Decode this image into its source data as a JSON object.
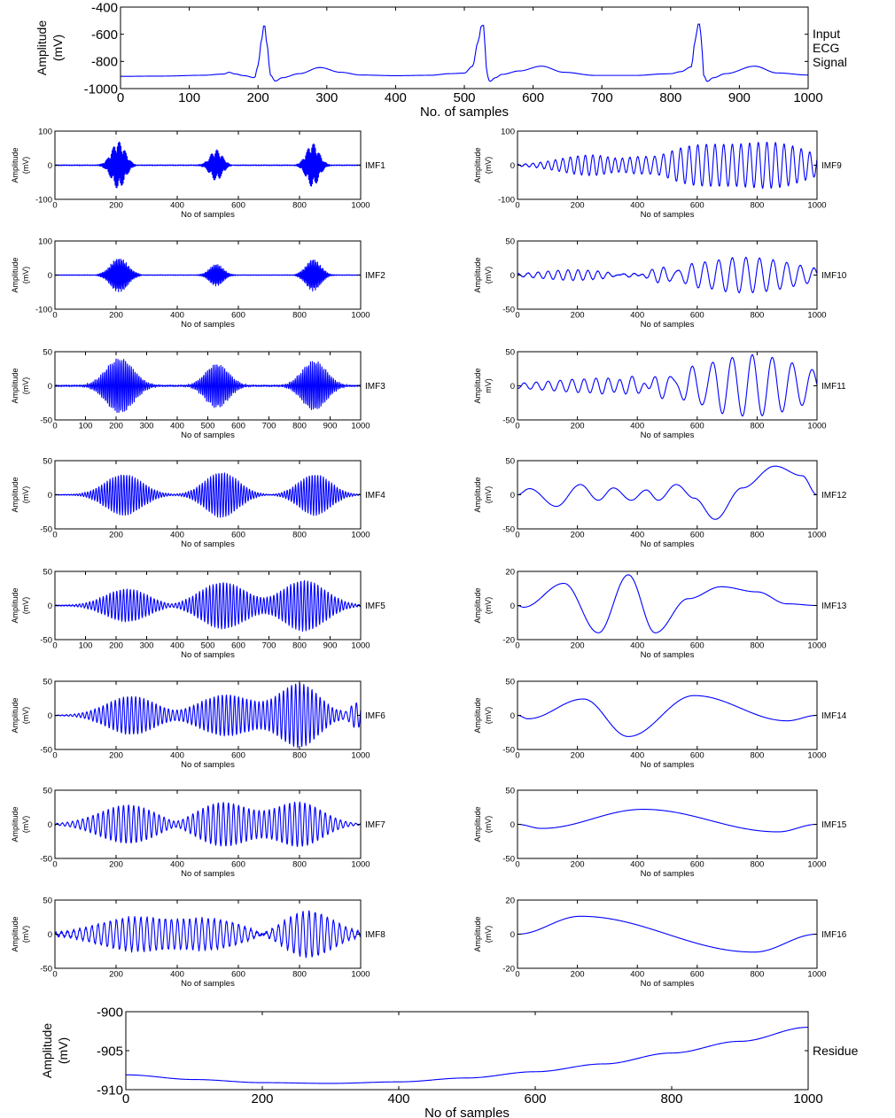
{
  "figure": {
    "trace_color": "#0000ff",
    "axis_color": "#000000"
  },
  "chart_data": [
    {
      "id": "ecg",
      "type": "line",
      "ylabel": "Amplitude",
      "ylabel_sub": "(mV)",
      "xlabel": "No. of samples",
      "side_label": [
        "Input",
        "ECG",
        "Signal"
      ],
      "xlim": [
        0,
        1000
      ],
      "ylim": [
        -1000,
        -400
      ],
      "xticks": [
        0,
        100,
        200,
        300,
        400,
        500,
        600,
        700,
        800,
        900,
        1000
      ],
      "yticks": [
        -1000,
        -800,
        -600,
        -400
      ],
      "series": [
        {
          "x": [
            0,
            60,
            120,
            150,
            158,
            166,
            180,
            195,
            200,
            205,
            208,
            210,
            213,
            218,
            225,
            235,
            260,
            290,
            320,
            350,
            400,
            450,
            480,
            500,
            512,
            520,
            525,
            528,
            530,
            533,
            537,
            545,
            555,
            580,
            612,
            645,
            690,
            750,
            790,
            800,
            815,
            830,
            836,
            840,
            843,
            845,
            848,
            853,
            862,
            880,
            922,
            955,
            1000
          ],
          "y": [
            -910,
            -908,
            -902,
            -893,
            -880,
            -892,
            -905,
            -920,
            -830,
            -650,
            -540,
            -540,
            -680,
            -900,
            -945,
            -920,
            -890,
            -845,
            -880,
            -900,
            -905,
            -902,
            -890,
            -886,
            -835,
            -655,
            -535,
            -535,
            -680,
            -900,
            -948,
            -920,
            -895,
            -870,
            -835,
            -880,
            -903,
            -903,
            -892,
            -890,
            -875,
            -840,
            -640,
            -525,
            -525,
            -680,
            -900,
            -948,
            -920,
            -890,
            -835,
            -885,
            -900
          ]
        }
      ]
    },
    {
      "id": "imf1",
      "type": "line",
      "ylabel": "Amplitude",
      "ylabel_sub": "(mV)",
      "xlabel": "No of samples",
      "side_label": [
        "IMF1"
      ],
      "xlim": [
        0,
        1000
      ],
      "ylim": [
        -100,
        100
      ],
      "xticks": [
        0,
        200,
        400,
        600,
        800,
        1000
      ],
      "yticks": [
        -100,
        0,
        100
      ],
      "bursts": [
        [
          207,
          22,
          70,
          0.35
        ],
        [
          527,
          20,
          45,
          0.35
        ],
        [
          843,
          20,
          65,
          0.35
        ]
      ],
      "noise": 1.5
    },
    {
      "id": "imf2",
      "type": "line",
      "ylabel": "Amplitude",
      "ylabel_sub": "(mV)",
      "xlabel": "No of samples",
      "side_label": [
        "IMF2"
      ],
      "xlim": [
        0,
        1000
      ],
      "ylim": [
        -100,
        100
      ],
      "xticks": [
        0,
        200,
        400,
        600,
        800,
        1000
      ],
      "yticks": [
        -100,
        0,
        100
      ],
      "bursts": [
        [
          210,
          28,
          50,
          0.22
        ],
        [
          528,
          22,
          32,
          0.22
        ],
        [
          845,
          24,
          46,
          0.22
        ]
      ],
      "noise": 1
    },
    {
      "id": "imf3",
      "type": "line",
      "ylabel": "Amplitude",
      "ylabel_sub": "(mV)",
      "xlabel": "No of samples",
      "side_label": [
        "IMF3"
      ],
      "xlim": [
        0,
        1000
      ],
      "ylim": [
        -50,
        50
      ],
      "xticks": [
        0,
        100,
        200,
        300,
        400,
        500,
        600,
        700,
        800,
        900,
        1000
      ],
      "yticks": [
        -50,
        0,
        50
      ],
      "bursts": [
        [
          212,
          45,
          40,
          0.16
        ],
        [
          530,
          38,
          32,
          0.16
        ],
        [
          848,
          40,
          36,
          0.16
        ]
      ],
      "noise": 1.2
    },
    {
      "id": "imf4",
      "type": "line",
      "ylabel": "Amplitude",
      "ylabel_sub": "(mV)",
      "xlabel": "No of samples",
      "side_label": [
        "IMF4"
      ],
      "xlim": [
        0,
        1000
      ],
      "ylim": [
        -50,
        50
      ],
      "xticks": [
        0,
        200,
        400,
        600,
        800,
        1000
      ],
      "yticks": [
        -50,
        0,
        50
      ],
      "bursts": [
        [
          225,
          60,
          30,
          0.11
        ],
        [
          545,
          55,
          33,
          0.11
        ],
        [
          850,
          52,
          30,
          0.11
        ]
      ],
      "noise": 0.6
    },
    {
      "id": "imf5",
      "type": "line",
      "ylabel": "Amplitude",
      "ylabel_sub": "(mV)",
      "xlabel": "No of samples",
      "side_label": [
        "IMF5"
      ],
      "xlim": [
        0,
        1000
      ],
      "ylim": [
        -50,
        50
      ],
      "xticks": [
        0,
        100,
        200,
        300,
        400,
        500,
        600,
        700,
        800,
        900,
        1000
      ],
      "yticks": [
        -50,
        0,
        50
      ],
      "bursts": [
        [
          235,
          70,
          24,
          0.09
        ],
        [
          550,
          75,
          34,
          0.09
        ],
        [
          815,
          70,
          37,
          0.09
        ]
      ],
      "noise": 0.8
    },
    {
      "id": "imf6",
      "type": "line",
      "ylabel": "Amplitude",
      "ylabel_sub": "(mV)",
      "xlabel": "No of samples",
      "side_label": [
        "IMF6"
      ],
      "xlim": [
        0,
        1000
      ],
      "ylim": [
        -50,
        50
      ],
      "xticks": [
        0,
        200,
        400,
        600,
        800,
        1000
      ],
      "yticks": [
        -50,
        0,
        50
      ],
      "bursts": [
        [
          250,
          80,
          28,
          0.075
        ],
        [
          560,
          90,
          30,
          0.075
        ],
        [
          800,
          65,
          46,
          0.075
        ],
        [
          985,
          25,
          18,
          0.06
        ]
      ],
      "noise": 0.5
    },
    {
      "id": "imf7",
      "type": "line",
      "ylabel": "Amplitude",
      "ylabel_sub": "(mV)",
      "xlabel": "No of samples",
      "side_label": [
        "IMF7"
      ],
      "xlim": [
        0,
        1000
      ],
      "ylim": [
        -50,
        50
      ],
      "xticks": [
        0,
        200,
        400,
        600,
        800,
        1000
      ],
      "yticks": [
        -50,
        0,
        50
      ],
      "bursts": [
        [
          240,
          95,
          28,
          0.06
        ],
        [
          550,
          90,
          32,
          0.06
        ],
        [
          800,
          75,
          32,
          0.06
        ]
      ],
      "noise": 0.5
    },
    {
      "id": "imf8",
      "type": "line",
      "ylabel": "Amplitude",
      "ylabel_sub": "(mV)",
      "xlabel": "No of samples",
      "side_label": [
        "IMF8"
      ],
      "xlim": [
        0,
        1000
      ],
      "ylim": [
        -50,
        50
      ],
      "xticks": [
        0,
        200,
        400,
        600,
        800,
        1000
      ],
      "yticks": [
        -50,
        0,
        50
      ],
      "bursts": [
        [
          260,
          120,
          24,
          0.05
        ],
        [
          520,
          100,
          20,
          0.05
        ],
        [
          830,
          80,
          34,
          0.05
        ]
      ],
      "noise": 2
    },
    {
      "id": "imf9",
      "type": "line",
      "ylabel": "Amplitude",
      "ylabel_sub": "(mV)",
      "xlabel": "No of samples",
      "side_label": [
        "IMF9"
      ],
      "xlim": [
        0,
        1000
      ],
      "ylim": [
        -100,
        100
      ],
      "xticks": [
        0,
        200,
        400,
        600,
        800,
        1000
      ],
      "yticks": [
        -100,
        0,
        100
      ],
      "bursts": [
        [
          250,
          110,
          30,
          0.04
        ],
        [
          600,
          120,
          55,
          0.035
        ],
        [
          860,
          120,
          62,
          0.035
        ]
      ],
      "noise": 1
    },
    {
      "id": "imf10",
      "type": "line",
      "ylabel": "Amplitude",
      "ylabel_sub": "(mV)",
      "xlabel": "No of samples",
      "side_label": [
        "IMF10"
      ],
      "xlim": [
        0,
        1000
      ],
      "ylim": [
        -50,
        50
      ],
      "xticks": [
        0,
        200,
        400,
        600,
        800,
        1000
      ],
      "yticks": [
        -50,
        0,
        50
      ],
      "bursts": [
        [
          200,
          120,
          8,
          0.03
        ],
        [
          450,
          100,
          6,
          0.03
        ],
        [
          760,
          170,
          26,
          0.022
        ]
      ],
      "noise": 0.5
    },
    {
      "id": "imf11",
      "type": "line",
      "ylabel": "Amplitude",
      "ylabel_sub": "mV)",
      "xlabel": "No of samples",
      "side_label": [
        "IMF11"
      ],
      "xlim": [
        0,
        1000
      ],
      "ylim": [
        -50,
        50
      ],
      "xticks": [
        0,
        200,
        400,
        600,
        800,
        1000
      ],
      "yticks": [
        -50,
        0,
        50
      ],
      "bursts": [
        [
          300,
          200,
          11,
          0.025
        ],
        [
          780,
          180,
          45,
          0.015
        ]
      ],
      "noise": 0.3
    },
    {
      "id": "imf12",
      "type": "line",
      "ylabel": "Amplitude",
      "ylabel_sub": "(mV)",
      "xlabel": "No of samples",
      "side_label": [
        "IMF12"
      ],
      "xlim": [
        0,
        1000
      ],
      "ylim": [
        -50,
        50
      ],
      "xticks": [
        0,
        200,
        400,
        600,
        800,
        1000
      ],
      "yticks": [
        -50,
        0,
        50
      ],
      "series": [
        {
          "x": [
            0,
            40,
            130,
            210,
            270,
            320,
            380,
            430,
            470,
            530,
            590,
            660,
            750,
            860,
            950,
            1000
          ],
          "y": [
            0,
            9,
            -17,
            15,
            -8,
            10,
            -8,
            7,
            -8,
            15,
            -5,
            -36,
            10,
            42,
            28,
            0
          ]
        }
      ]
    },
    {
      "id": "imf13",
      "type": "line",
      "ylabel": "Amplitude",
      "ylabel_sub": "(mV)",
      "xlabel": "No of samples",
      "side_label": [
        "IMF13"
      ],
      "xlim": [
        0,
        1000
      ],
      "ylim": [
        -20,
        20
      ],
      "xticks": [
        0,
        200,
        400,
        600,
        800,
        1000
      ],
      "yticks": [
        -20,
        0,
        20
      ],
      "series": [
        {
          "x": [
            0,
            20,
            155,
            270,
            370,
            460,
            570,
            680,
            800,
            900,
            1000
          ],
          "y": [
            0,
            -1,
            13,
            -16,
            18,
            -16,
            4,
            11,
            8,
            1,
            0
          ]
        }
      ]
    },
    {
      "id": "imf14",
      "type": "line",
      "ylabel": "Amplitude",
      "ylabel_sub": "(mV)",
      "xlabel": "No of samples",
      "side_label": [
        "IMF14"
      ],
      "xlim": [
        0,
        1000
      ],
      "ylim": [
        -50,
        50
      ],
      "xticks": [
        0,
        200,
        400,
        600,
        800,
        1000
      ],
      "yticks": [
        -50,
        0,
        50
      ],
      "series": [
        {
          "x": [
            0,
            35,
            220,
            370,
            590,
            900,
            1000
          ],
          "y": [
            0,
            -5,
            24,
            -31,
            29,
            -8,
            0
          ]
        }
      ]
    },
    {
      "id": "imf15",
      "type": "line",
      "ylabel": "Amplitude",
      "ylabel_sub": "(mV)",
      "xlabel": "No of samples",
      "side_label": [
        "IMF15"
      ],
      "xlim": [
        0,
        1000
      ],
      "ylim": [
        -50,
        50
      ],
      "xticks": [
        0,
        200,
        400,
        600,
        800,
        1000
      ],
      "yticks": [
        -50,
        0,
        50
      ],
      "series": [
        {
          "x": [
            0,
            80,
            420,
            870,
            1000
          ],
          "y": [
            0,
            -6,
            22,
            -11,
            0
          ]
        }
      ]
    },
    {
      "id": "imf16",
      "type": "line",
      "ylabel": "Amplitude",
      "ylabel_sub": "(mV)",
      "xlabel": "No of samples",
      "side_label": [
        "IMF16"
      ],
      "xlim": [
        0,
        1000
      ],
      "ylim": [
        -20,
        20
      ],
      "xticks": [
        0,
        200,
        400,
        600,
        800,
        1000
      ],
      "yticks": [
        -20,
        0,
        20
      ],
      "series": [
        {
          "x": [
            0,
            210,
            790,
            1000
          ],
          "y": [
            0,
            10.5,
            -10.5,
            0
          ]
        }
      ]
    },
    {
      "id": "residue",
      "type": "line",
      "ylabel": "Amplitude",
      "ylabel_sub": "(mV)",
      "xlabel": "No of samples",
      "side_label": [
        "Residue"
      ],
      "xlim": [
        0,
        1000
      ],
      "ylim": [
        -910,
        -900
      ],
      "xticks": [
        0,
        200,
        400,
        600,
        800,
        1000
      ],
      "yticks": [
        -910,
        -905,
        -900
      ],
      "series": [
        {
          "x": [
            0,
            100,
            200,
            300,
            400,
            500,
            600,
            700,
            800,
            900,
            1000
          ],
          "y": [
            -908.1,
            -908.7,
            -909.1,
            -909.2,
            -909.0,
            -908.5,
            -907.7,
            -906.7,
            -905.3,
            -903.8,
            -902.0
          ]
        }
      ]
    }
  ]
}
